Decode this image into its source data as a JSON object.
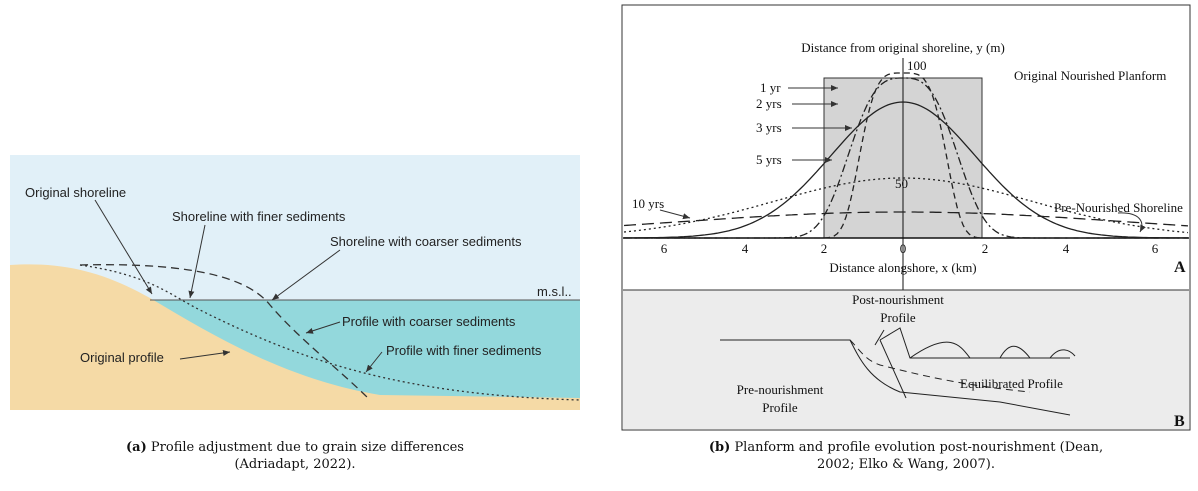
{
  "figure_a": {
    "original_shoreline": "Original shoreline",
    "shoreline_finer": "Shoreline with finer sediments",
    "shoreline_coarser": "Shoreline with coarser sediments",
    "msl": "m.s.l..",
    "profile_coarser": "Profile with coarser sediments",
    "profile_finer": "Profile with finer sediments",
    "original_profile": "Original profile"
  },
  "figure_b": {
    "y_axis_label": "Distance from original shoreline, y (m)",
    "y_ticks": [
      "100",
      "50"
    ],
    "original_planform": "Original Nourished Planform",
    "curves": [
      "1 yr",
      "2 yrs",
      "3 yrs",
      "5 yrs",
      "10 yrs"
    ],
    "pre_nourished_shoreline": "Pre-Nourished Shoreline",
    "x_ticks": [
      "6",
      "4",
      "2",
      "0",
      "2",
      "4",
      "6"
    ],
    "x_axis_label": "Distance alongshore, x (km)",
    "panel_a": "A",
    "post_nourishment": [
      "Post-nourishment",
      "Profile"
    ],
    "pre_nourishment": [
      "Pre-nourishment",
      "Profile"
    ],
    "equilibrated": "Equilibrated Profile",
    "panel_b": "B"
  },
  "captions": [
    {
      "tag": "(a)",
      "lines": [
        "Profile adjustment due to grain size differences",
        "(Adriadapt, 2022)."
      ]
    },
    {
      "tag": "(b)",
      "lines": [
        "Planform and profile evolution post-nourishment (Dean,",
        "2002; Elko & Wang, 2007)."
      ]
    }
  ]
}
